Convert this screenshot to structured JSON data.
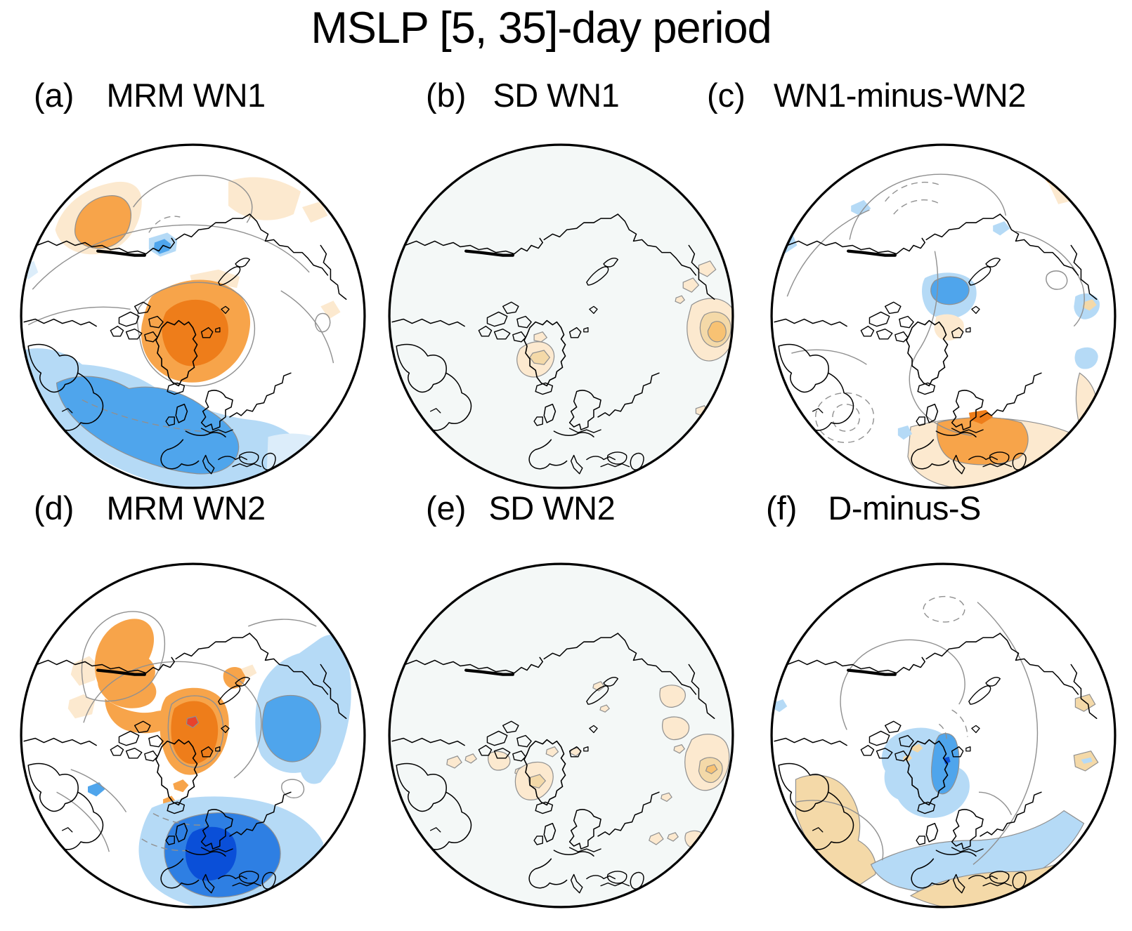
{
  "title": "MSLP [5, 35]-day period",
  "panels": [
    {
      "id": "a",
      "tag": "(a)",
      "label": "MRM WN1"
    },
    {
      "id": "b",
      "tag": "(b)",
      "label": "SD WN1"
    },
    {
      "id": "c",
      "tag": "(c)",
      "label": "WN1-minus-WN2"
    },
    {
      "id": "d",
      "tag": "(d)",
      "label": "MRM WN2"
    },
    {
      "id": "e",
      "tag": "(e)",
      "label": "SD WN2"
    },
    {
      "id": "f",
      "tag": "(f)",
      "label": "D-minus-S"
    }
  ],
  "palette": {
    "orange_pale": "#FCE9CF",
    "orange_tan": "#F4D9A8",
    "orange_light": "#F8C273",
    "orange_med": "#F7A44A",
    "orange_dark": "#EE7D1A",
    "red": "#E8432C",
    "blue_pale": "#DCEDFA",
    "blue_light": "#B5DAF6",
    "blue_sky": "#4FA5EC",
    "blue_strong": "#2E7FE3",
    "blue_deep": "#0A4FD8",
    "contour_gray": "#909090",
    "coastline": "#000000",
    "background": "#FFFFFF",
    "background_tint": "#F4F8F7"
  }
}
